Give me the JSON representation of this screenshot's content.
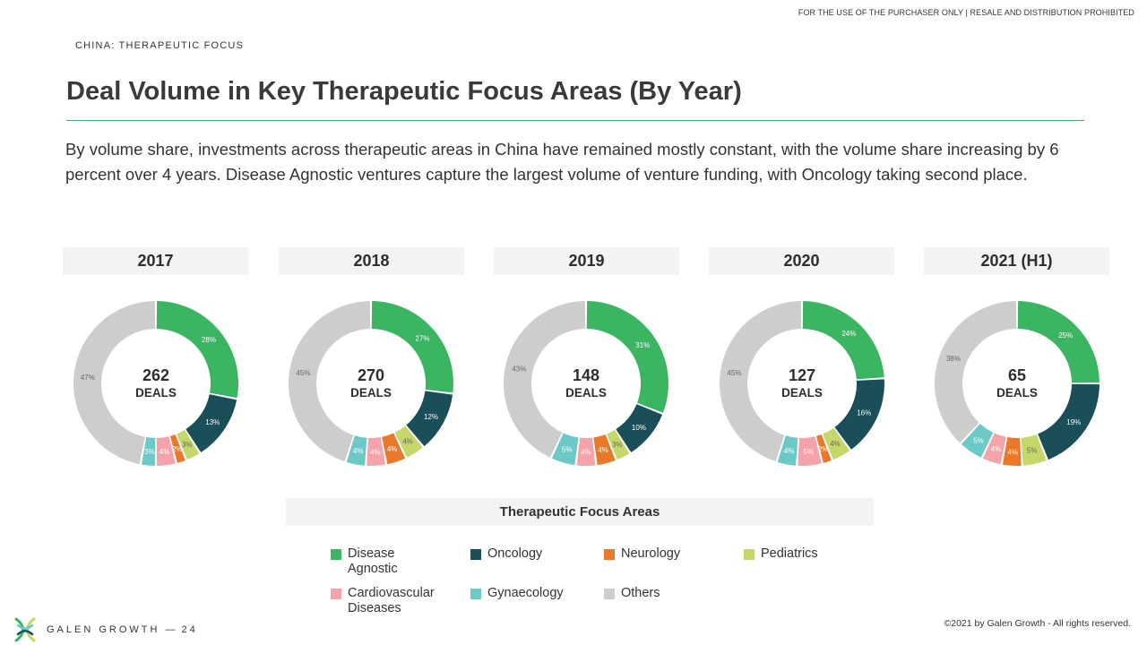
{
  "header": {
    "disclaimer": "FOR THE USE OF THE PURCHASER ONLY | RESALE AND DISTRIBUTION PROHIBITED",
    "section": "CHINA: THERAPEUTIC FOCUS",
    "title": "Deal Volume in Key Therapeutic Focus Areas (By Year)",
    "description": "By volume share, investments across therapeutic areas in China have remained mostly constant, with the volume share increasing by 6 percent over 4 years.  Disease Agnostic ventures capture the largest volume of venture funding, with Oncology taking second place."
  },
  "colors": {
    "Disease Agnostic": "#3cb563",
    "Oncology": "#1a4e58",
    "Neurology": "#e8792b",
    "Pediatrics": "#c5d769",
    "Cardiovascular Diseases": "#f4a3a8",
    "Gynaecology": "#6cc9c8",
    "Others": "#cdcdcd"
  },
  "chart_data": [
    {
      "type": "pie",
      "title": "2017",
      "center_value": "262",
      "center_label": "DEALS",
      "categories": [
        "Disease Agnostic",
        "Oncology",
        "Pediatrics",
        "Neurology",
        "Cardiovascular Diseases",
        "Gynaecology",
        "Others"
      ],
      "values": [
        28,
        13,
        3,
        2,
        4,
        3,
        47
      ],
      "labels": [
        "28%",
        "13%",
        "3%",
        "2%",
        "4%",
        "3%",
        "47%"
      ]
    },
    {
      "type": "pie",
      "title": "2018",
      "center_value": "270",
      "center_label": "DEALS",
      "categories": [
        "Disease Agnostic",
        "Oncology",
        "Pediatrics",
        "Neurology",
        "Cardiovascular Diseases",
        "Gynaecology",
        "Others"
      ],
      "values": [
        27,
        12,
        4,
        4,
        4,
        4,
        45
      ],
      "labels": [
        "27%",
        "12%",
        "4%",
        "4%",
        "4%",
        "4%",
        "45%"
      ]
    },
    {
      "type": "pie",
      "title": "2019",
      "center_value": "148",
      "center_label": "DEALS",
      "categories": [
        "Disease Agnostic",
        "Oncology",
        "Pediatrics",
        "Neurology",
        "Cardiovascular Diseases",
        "Gynaecology",
        "Others"
      ],
      "values": [
        31,
        10,
        3,
        4,
        4,
        5,
        43
      ],
      "labels": [
        "31%",
        "10%",
        "3%",
        "4%",
        "4%",
        "5%",
        "43%"
      ]
    },
    {
      "type": "pie",
      "title": "2020",
      "center_value": "127",
      "center_label": "DEALS",
      "categories": [
        "Disease Agnostic",
        "Oncology",
        "Pediatrics",
        "Neurology",
        "Cardiovascular Diseases",
        "Gynaecology",
        "Others"
      ],
      "values": [
        24,
        16,
        4,
        2,
        5,
        4,
        45
      ],
      "labels": [
        "24%",
        "16%",
        "4%",
        "2%",
        "5%",
        "4%",
        "45%"
      ]
    },
    {
      "type": "pie",
      "title": "2021 (H1)",
      "center_value": "65",
      "center_label": "DEALS",
      "categories": [
        "Disease Agnostic",
        "Oncology",
        "Pediatrics",
        "Neurology",
        "Cardiovascular Diseases",
        "Gynaecology",
        "Others"
      ],
      "values": [
        25,
        19,
        5,
        4,
        4,
        5,
        38
      ],
      "labels": [
        "25%",
        "19%",
        "5%",
        "4%",
        "4%",
        "5%",
        "38%"
      ]
    }
  ],
  "legend": {
    "title": "Therapeutic Focus Areas",
    "items": [
      {
        "label": "Disease Agnostic"
      },
      {
        "label": "Oncology"
      },
      {
        "label": "Neurology"
      },
      {
        "label": "Pediatrics"
      },
      {
        "label": "Cardiovascular Diseases"
      },
      {
        "label": "Gynaecology"
      },
      {
        "label": "Others"
      }
    ]
  },
  "footer": {
    "brand": "GALEN GROWTH",
    "separator": "—",
    "page": "24",
    "copyright": "©2021 by Galen Growth  - All rights reserved."
  }
}
